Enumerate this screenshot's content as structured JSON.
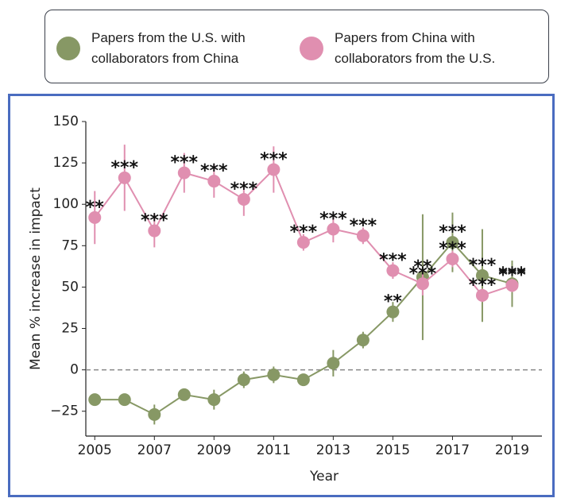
{
  "chart_data": {
    "type": "line",
    "x_label": "Year",
    "y_label": "Mean % increase in impact",
    "x": [
      2005,
      2006,
      2007,
      2008,
      2009,
      2010,
      2011,
      2012,
      2013,
      2014,
      2015,
      2016,
      2017,
      2018,
      2019
    ],
    "xlim": [
      2004.7,
      2020
    ],
    "xticks": [
      2005,
      2007,
      2009,
      2011,
      2013,
      2015,
      2017,
      2019
    ],
    "ylim": [
      -40,
      150
    ],
    "yticks": [
      {
        "value": -25,
        "label": "−25"
      },
      0,
      25,
      50,
      75,
      100,
      125,
      150
    ],
    "zero_line": true,
    "series": [
      {
        "name": "Papers from the U.S. with collaborators from China",
        "color": "#879865",
        "values": [
          -18,
          -18,
          -27,
          -15,
          -18,
          -6,
          -3,
          -6,
          4,
          18,
          35,
          56,
          77,
          57,
          52
        ],
        "errors": [
          3,
          3,
          6,
          3,
          6,
          5,
          5,
          3,
          8,
          5,
          6,
          38,
          18,
          28,
          14
        ],
        "labels": [
          null,
          null,
          null,
          null,
          null,
          null,
          null,
          null,
          null,
          null,
          "**",
          "**",
          "***",
          "***",
          "***"
        ]
      },
      {
        "name": "Papers from China with collaborators from the U.S.",
        "color": "#e08fb0",
        "values": [
          92,
          116,
          84,
          119,
          114,
          103,
          121,
          77,
          85,
          81,
          60,
          52,
          67,
          45,
          51
        ],
        "errors": [
          16,
          20,
          10,
          12,
          10,
          10,
          14,
          5,
          8,
          5,
          5,
          7,
          5,
          4,
          4
        ],
        "labels": [
          "**",
          "***",
          "***",
          "***",
          "***",
          "***",
          "***",
          "***",
          "***",
          "***",
          "***",
          "***",
          "***",
          "***",
          "***"
        ]
      }
    ]
  }
}
